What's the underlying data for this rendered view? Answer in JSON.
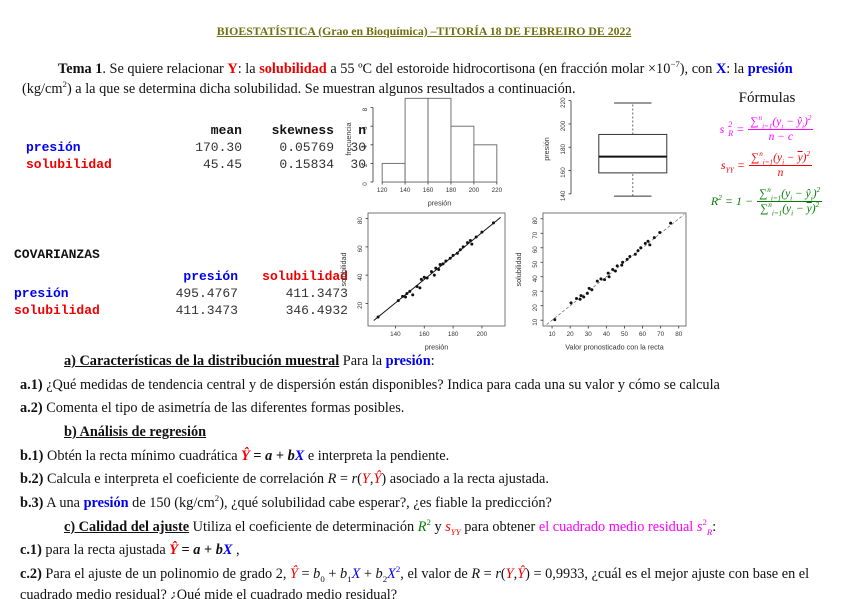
{
  "header": {
    "title": "BIOESTATÍSTICA (Grao en Bioquímica) –TITORÍA 18 DE FEBREIRO DE 2022"
  },
  "intro": {
    "segments": [
      {
        "t": "Tema 1",
        "c": "b"
      },
      {
        "t": ". Se quiere relacionar "
      },
      {
        "t": "Y",
        "c": "b red"
      },
      {
        "t": ": la "
      },
      {
        "t": "solubilidad",
        "c": "b red"
      },
      {
        "t": " a 55 ºC del estoroide hidrocortisona (en fracción molar ×10"
      },
      {
        "t": "−7",
        "sup": true
      },
      {
        "t": "), con "
      },
      {
        "t": "X",
        "c": "b blue"
      },
      {
        "t": ": la "
      },
      {
        "t": "presión",
        "c": "b blue"
      },
      {
        "t": " (kg/cm"
      },
      {
        "t": "2",
        "sup": true
      },
      {
        "t": ") a la que se determina dicha solubilidad. Se muestran algunos resultados a continuación."
      }
    ]
  },
  "stats_table": {
    "headers": [
      "mean",
      "skewness",
      "n"
    ],
    "rows": [
      {
        "label": "presión",
        "values": [
          "170.30",
          "0.05769",
          "30"
        ]
      },
      {
        "label": "solubilidad",
        "values": [
          "45.45",
          "0.15834",
          "30"
        ]
      }
    ]
  },
  "covariance": {
    "title": "COVARIANZAS",
    "col_headers": [
      "presión",
      "solubilidad"
    ],
    "rows": [
      {
        "label": "presión",
        "values": [
          "495.4767",
          "411.3473"
        ]
      },
      {
        "label": "solubilidad",
        "values": [
          "411.3473",
          "346.4932"
        ]
      }
    ]
  },
  "formulas": {
    "title": "Fórmulas",
    "f1": {
      "lhs": [
        {
          "t": "s",
          "c": "i"
        }
      ],
      "sup": "2",
      "sub": "R",
      "eq": "=",
      "num": [
        {
          "t": "∑"
        },
        {
          "t": "n",
          "sup": true
        },
        {
          "t": "i=1",
          "sub": true
        },
        {
          "t": "("
        },
        {
          "t": "y",
          "c": "i"
        },
        {
          "t": "i",
          "sub": true
        },
        {
          "t": " − "
        },
        {
          "t": "ŷ",
          "c": "i"
        },
        {
          "t": "i",
          "sub": true
        },
        {
          "t": ")"
        },
        {
          "t": "2",
          "sup": true
        }
      ],
      "den": [
        {
          "t": "n",
          "c": "i"
        },
        {
          "t": " − "
        },
        {
          "t": "c",
          "c": "i"
        }
      ]
    },
    "f2": {
      "lhs": [
        {
          "t": "s",
          "c": "i"
        },
        {
          "t": "YY",
          "sub": true,
          "c": "i"
        }
      ],
      "eq": "=",
      "num": [
        {
          "t": "∑"
        },
        {
          "t": "n",
          "sup": true
        },
        {
          "t": "i=1",
          "sub": true
        },
        {
          "t": "("
        },
        {
          "t": "y",
          "c": "i"
        },
        {
          "t": "i",
          "sub": true
        },
        {
          "t": " − "
        },
        {
          "t": "y",
          "c": "i ov"
        },
        {
          "t": ")"
        },
        {
          "t": "2",
          "sup": true
        }
      ],
      "den": [
        {
          "t": "n",
          "c": "i"
        }
      ]
    },
    "f3": {
      "lhs": [
        {
          "t": "R",
          "c": "i"
        },
        {
          "t": "2",
          "sup": true
        }
      ],
      "eq": "= 1 −",
      "num": [
        {
          "t": "∑"
        },
        {
          "t": "n",
          "sup": true
        },
        {
          "t": "i=1",
          "sub": true
        },
        {
          "t": "("
        },
        {
          "t": "y",
          "c": "i"
        },
        {
          "t": "i",
          "sub": true
        },
        {
          "t": " − "
        },
        {
          "t": "ŷ",
          "c": "i"
        },
        {
          "t": "i",
          "sub": true
        },
        {
          "t": ")"
        },
        {
          "t": "2",
          "sup": true
        }
      ],
      "den": [
        {
          "t": "∑"
        },
        {
          "t": "n",
          "sup": true
        },
        {
          "t": "i=1",
          "sub": true
        },
        {
          "t": "("
        },
        {
          "t": "y",
          "c": "i"
        },
        {
          "t": "i",
          "sub": true
        },
        {
          "t": " − "
        },
        {
          "t": "y",
          "c": "i ov"
        },
        {
          "t": ")"
        },
        {
          "t": "2",
          "sup": true
        }
      ]
    }
  },
  "questions": {
    "qa": [
      {
        "t": "a) Características de la distribución muestral",
        "c": "b u"
      },
      {
        "t": " Para la "
      },
      {
        "t": "presión",
        "c": "b blue"
      },
      {
        "t": ":"
      }
    ],
    "qa1": [
      {
        "t": "a.1)",
        "c": "b"
      },
      {
        "t": " ¿Qué medidas de tendencia central y de dispersión están disponibles? Indica para cada una su valor y cómo se calcula"
      }
    ],
    "qa2": [
      {
        "t": "a.2)",
        "c": "b"
      },
      {
        "t": " Comenta el tipo de asimetría de las diferentes formas posibles."
      }
    ],
    "qb": [
      {
        "t": "b) Análisis de regresión",
        "c": "b u"
      }
    ],
    "qb1": [
      {
        "t": "b.1)",
        "c": "b"
      },
      {
        "t": " Obtén la recta mínimo cuadrática "
      },
      {
        "t": "Ŷ",
        "c": "b i red"
      },
      {
        "t": " = ",
        "c": "b"
      },
      {
        "t": "a",
        "c": "b i"
      },
      {
        "t": " + ",
        "c": "b"
      },
      {
        "t": "b",
        "c": "b i"
      },
      {
        "t": "X",
        "c": "b i blue"
      },
      {
        "t": "  e interpreta la pendiente."
      }
    ],
    "qb2": [
      {
        "t": "b.2)",
        "c": "b"
      },
      {
        "t": " Calcula e interpreta el coeficiente de correlación "
      },
      {
        "t": "R",
        "c": "i"
      },
      {
        "t": " = "
      },
      {
        "t": "r",
        "c": "i"
      },
      {
        "t": "("
      },
      {
        "t": "Y",
        "c": "i red"
      },
      {
        "t": ","
      },
      {
        "t": "Ŷ",
        "c": "i red"
      },
      {
        "t": ") asociado a la recta ajustada."
      }
    ],
    "qb3": [
      {
        "t": "b.3)",
        "c": "b"
      },
      {
        "t": " A una "
      },
      {
        "t": "presión",
        "c": "b blue"
      },
      {
        "t": " de 150 (kg/cm"
      },
      {
        "t": "2",
        "sup": true
      },
      {
        "t": "), ¿qué solubilidad cabe esperar?, ¿es fiable la predicción?"
      }
    ],
    "qc": [
      {
        "t": "c) Calidad del ajuste",
        "c": "b u"
      },
      {
        "t": " Utiliza el coeficiente de determinación "
      },
      {
        "t": "R",
        "c": "i grn"
      },
      {
        "t": "2",
        "sup": true,
        "c": "grn"
      },
      {
        "t": " y "
      },
      {
        "t": "s",
        "c": "i red"
      },
      {
        "t": "YY",
        "sub": true,
        "c": "i red"
      },
      {
        "t": " para obtener "
      },
      {
        "t": "el cuadrado medio residual ",
        "c": "mag"
      },
      {
        "t": "s",
        "c": "i mag"
      },
      {
        "t": "2",
        "sup": true,
        "c": "mag"
      },
      {
        "t": "R",
        "sub": true,
        "c": "i mag"
      },
      {
        "t": ":"
      }
    ],
    "qc1": [
      {
        "t": "c.1)",
        "c": "b"
      },
      {
        "t": " para la recta ajustada "
      },
      {
        "t": "Ŷ",
        "c": "b i red"
      },
      {
        "t": " = ",
        "c": "b"
      },
      {
        "t": "a",
        "c": "b i"
      },
      {
        "t": " + ",
        "c": "b"
      },
      {
        "t": "b",
        "c": "b i"
      },
      {
        "t": "X",
        "c": "b i blue"
      },
      {
        "t": " ,"
      }
    ],
    "qc2": [
      {
        "t": "c.2)",
        "c": "b"
      },
      {
        "t": " Para el ajuste de un polinomio de grado 2, "
      },
      {
        "t": "Ŷ",
        "c": "i red"
      },
      {
        "t": " = "
      },
      {
        "t": "b",
        "c": "i"
      },
      {
        "t": "0",
        "sub": true
      },
      {
        "t": " + "
      },
      {
        "t": "b",
        "c": "i"
      },
      {
        "t": "1",
        "sub": true
      },
      {
        "t": "X",
        "c": "i blue"
      },
      {
        "t": " + "
      },
      {
        "t": "b",
        "c": "i"
      },
      {
        "t": "2",
        "sub": true
      },
      {
        "t": "X",
        "c": "i blue"
      },
      {
        "t": "2",
        "sup": true,
        "c": "blue"
      },
      {
        "t": ", el valor de "
      },
      {
        "t": "R",
        "c": "i"
      },
      {
        "t": " = "
      },
      {
        "t": "r",
        "c": "i"
      },
      {
        "t": "("
      },
      {
        "t": "Y",
        "c": "i red"
      },
      {
        "t": ","
      },
      {
        "t": "Ŷ",
        "c": "i red"
      },
      {
        "t": ") = 0,9933, ¿cuál es el mejor ajuste con base en el cuadrado medio residual? ¿Qué mide el cuadrado medio residual?"
      }
    ]
  },
  "chart_data": [
    {
      "type": "histogram",
      "title": "",
      "xlabel": "presión",
      "ylabel": "frecuencia",
      "xlim": [
        112,
        228
      ],
      "ylim": [
        0,
        9.25
      ],
      "xticks": [
        120,
        140,
        160,
        180,
        200,
        220
      ],
      "yticks": [
        0,
        2,
        4,
        6,
        8
      ],
      "bins": [
        {
          "from": 120,
          "to": 140,
          "count": 2
        },
        {
          "from": 140,
          "to": 160,
          "count": 9
        },
        {
          "from": 160,
          "to": 180,
          "count": 9
        },
        {
          "from": 180,
          "to": 200,
          "count": 6
        },
        {
          "from": 200,
          "to": 220,
          "count": 4
        }
      ]
    },
    {
      "type": "boxplot",
      "ylabel": "presión",
      "ylim": [
        133,
        224
      ],
      "yticks": [
        140,
        160,
        180,
        200,
        220
      ],
      "stats": {
        "whisker_low": 138,
        "q1": 158,
        "median": 172,
        "q3": 191,
        "whisker_high": 218
      }
    },
    {
      "type": "scatter",
      "xlabel": "presión",
      "ylabel": "solubilidad",
      "xlim": [
        121,
        216
      ],
      "ylim": [
        4,
        84
      ],
      "xticks": [
        140,
        160,
        180,
        200
      ],
      "yticks": [
        20,
        40,
        60,
        80
      ],
      "line": {
        "x1": 125,
        "y1": 7.9,
        "x2": 213,
        "y2": 80.9,
        "dashed": false
      },
      "points": [
        [
          128,
          10.4
        ],
        [
          142,
          22
        ],
        [
          145,
          25
        ],
        [
          147,
          24.5
        ],
        [
          148,
          27
        ],
        [
          150,
          28.5
        ],
        [
          152,
          26
        ],
        [
          155,
          32
        ],
        [
          157,
          31
        ],
        [
          158,
          37
        ],
        [
          160,
          38.5
        ],
        [
          162,
          38
        ],
        [
          165,
          42.5
        ],
        [
          167,
          40
        ],
        [
          168,
          45
        ],
        [
          170,
          44
        ],
        [
          171,
          47.5
        ],
        [
          173,
          48
        ],
        [
          175,
          50
        ],
        [
          178,
          52
        ],
        [
          180,
          54
        ],
        [
          183,
          55.5
        ],
        [
          185,
          58
        ],
        [
          187,
          60
        ],
        [
          190,
          63
        ],
        [
          192,
          64.5
        ],
        [
          193,
          62
        ],
        [
          196,
          67
        ],
        [
          200,
          70.5
        ],
        [
          208,
          77
        ]
      ]
    },
    {
      "type": "scatter",
      "xlabel": "Valor pronosticado con la recta",
      "ylabel": "solubilidad",
      "xlim": [
        5,
        84
      ],
      "ylim": [
        6,
        84
      ],
      "xticks": [
        10,
        20,
        30,
        40,
        50,
        60,
        70,
        80
      ],
      "yticks": [
        10,
        20,
        30,
        40,
        50,
        60,
        70,
        80
      ],
      "line": {
        "x1": 7,
        "y1": 7,
        "x2": 83,
        "y2": 83,
        "dashed": true
      },
      "points": [
        [
          11.5,
          10.4
        ],
        [
          20.5,
          22
        ],
        [
          23.5,
          25
        ],
        [
          25.5,
          24.5
        ],
        [
          26,
          27
        ],
        [
          29.5,
          28.5
        ],
        [
          27.5,
          26
        ],
        [
          30.5,
          32
        ],
        [
          32,
          31
        ],
        [
          35,
          37
        ],
        [
          37,
          38.5
        ],
        [
          39,
          38
        ],
        [
          41,
          42.5
        ],
        [
          41.5,
          40
        ],
        [
          43.5,
          45
        ],
        [
          45,
          44
        ],
        [
          46,
          47.5
        ],
        [
          48.5,
          48
        ],
        [
          49,
          50
        ],
        [
          51.5,
          52
        ],
        [
          53,
          54
        ],
        [
          56,
          55.5
        ],
        [
          57.5,
          58
        ],
        [
          59,
          60
        ],
        [
          61.5,
          63
        ],
        [
          63,
          64.5
        ],
        [
          64,
          62
        ],
        [
          66.5,
          67
        ],
        [
          69.5,
          70.5
        ],
        [
          75.5,
          77
        ]
      ]
    }
  ]
}
